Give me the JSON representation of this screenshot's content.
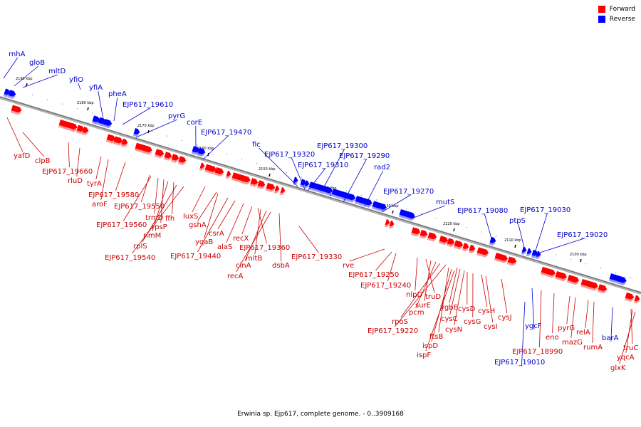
{
  "caption": "Erwinia sp. Ejp617, complete genome. - 0..3909168",
  "legend": [
    {
      "label": "Forward",
      "color": "#ff0000"
    },
    {
      "label": "Reverse",
      "color": "#0000ff"
    }
  ],
  "colors": {
    "forward_text": "#cc0000",
    "reverse_text": "#0000cc",
    "backbone": "#808080"
  },
  "ticks": [
    "2190 kbp",
    "2180 kbp",
    "2170 kbp",
    "2160 kbp",
    "2150 kbp",
    "2140 kbp",
    "2130 kbp",
    "2120 kbp",
    "2110 kbp",
    "2100 kbp"
  ],
  "reverse_genes": [
    "rnhA",
    "gloB",
    "mltD",
    "yfiO",
    "yfiA",
    "pheA",
    "EJP617_19610",
    "pyrG",
    "corE",
    "EJP617_19470",
    "fic",
    "EJP617_19320",
    "EJP617_19300",
    "EJP617_19310",
    "EJP617_19290",
    "rad2",
    "EJP617_19270",
    "mutS",
    "EJP617_19080",
    "ptpS",
    "EJP617_19030",
    "EJP617_19020",
    "ygcF",
    "EJP617_19010",
    "barA"
  ],
  "forward_genes": [
    "yafD",
    "clpB",
    "EJP617_19660",
    "rluD",
    "tyrA",
    "aroF",
    "EJP617_19580",
    "EJP617_19550",
    "EJP617_19560",
    "trmD",
    "rpsP",
    "ffh",
    "rimM",
    "rplS",
    "EJP617_19540",
    "luxS",
    "gshA",
    "yqaB",
    "EJP617_19440",
    "csrA",
    "alaS",
    "recX",
    "EJP617_19360",
    "mltB",
    "cinA",
    "recA",
    "dsbA",
    "EJP617_19330",
    "rve",
    "EJP617_19250",
    "EJP617_19240",
    "nlpD",
    "truD",
    "surE",
    "pcm",
    "rpoS",
    "EJP617_19220",
    "ygbE",
    "cysC",
    "cysN",
    "ftsB",
    "ispD",
    "ispF",
    "cysD",
    "cysG",
    "cysH",
    "cysI",
    "cysJ",
    "EJP617_18990",
    "eno",
    "pyrG",
    "mazG",
    "relA",
    "rumA",
    "truC",
    "yqcA",
    "glxK"
  ]
}
